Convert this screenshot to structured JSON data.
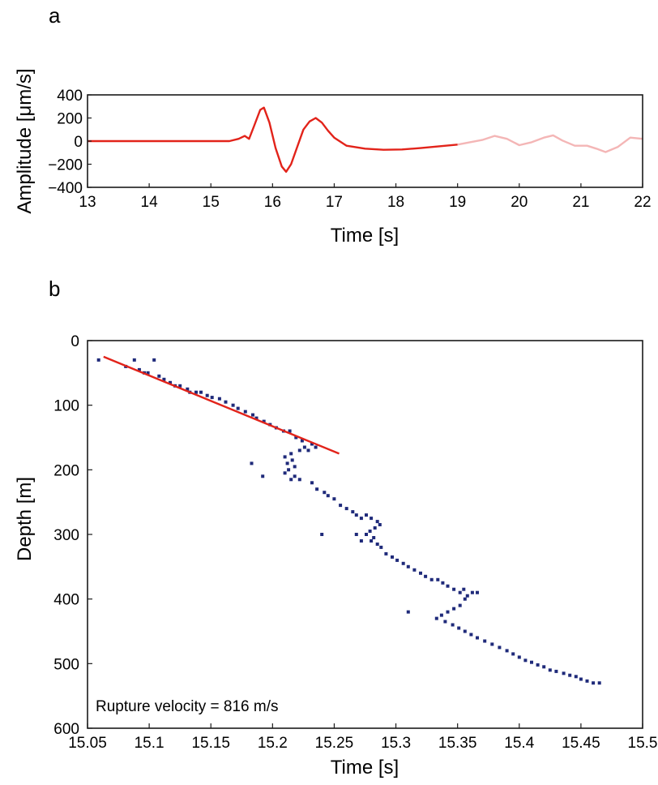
{
  "chart_data": [
    {
      "panel": "a",
      "type": "line",
      "xlabel": "Time [s]",
      "ylabel": "Amplitude [μm/s]",
      "xlim": [
        13,
        22
      ],
      "ylim": [
        -400,
        400
      ],
      "xticks": [
        "13",
        "14",
        "15",
        "16",
        "17",
        "18",
        "19",
        "20",
        "21",
        "22"
      ],
      "yticks": [
        "400",
        "200",
        "0",
        "−200",
        "−400"
      ],
      "series": [
        {
          "color": "#e2231a",
          "x": [
            13,
            15.3,
            15.45,
            15.55,
            15.62,
            15.7,
            15.8,
            15.86,
            15.95,
            16.05,
            16.15,
            16.22,
            16.3,
            16.4,
            16.5,
            16.6,
            16.7,
            16.8,
            16.9,
            17.0,
            17.2,
            17.5,
            17.8,
            18.1,
            18.4,
            18.7,
            19.0
          ],
          "y": [
            0,
            0,
            20,
            45,
            20,
            130,
            270,
            290,
            160,
            -60,
            -220,
            -265,
            -200,
            -50,
            100,
            170,
            200,
            160,
            90,
            30,
            -40,
            -65,
            -75,
            -72,
            -60,
            -45,
            -30
          ]
        },
        {
          "color": "#f4b6b6",
          "x": [
            19.0,
            19.2,
            19.4,
            19.6,
            19.8,
            20.0,
            20.2,
            20.4,
            20.55,
            20.7,
            20.9,
            21.1,
            21.25,
            21.4,
            21.6,
            21.8,
            22.0
          ],
          "y": [
            -30,
            -10,
            10,
            45,
            20,
            -35,
            -10,
            30,
            50,
            5,
            -40,
            -40,
            -65,
            -95,
            -50,
            30,
            20
          ]
        }
      ]
    },
    {
      "panel": "b",
      "type": "scatter",
      "xlabel": "Time [s]",
      "ylabel": "Depth [m]",
      "xlim": [
        15.05,
        15.5
      ],
      "ylim": [
        600,
        0
      ],
      "xticks": [
        "15.05",
        "15.1",
        "15.15",
        "15.2",
        "15.25",
        "15.3",
        "15.35",
        "15.4",
        "15.45",
        "15.5"
      ],
      "yticks": [
        "0",
        "100",
        "200",
        "300",
        "400",
        "500",
        "600"
      ],
      "annotation": "Rupture velocity = 816 m/s",
      "points_color": "#1f2a7a",
      "points": [
        [
          15.059,
          30
        ],
        [
          15.081,
          40
        ],
        [
          15.088,
          30
        ],
        [
          15.092,
          45
        ],
        [
          15.096,
          50
        ],
        [
          15.099,
          50
        ],
        [
          15.104,
          30
        ],
        [
          15.108,
          55
        ],
        [
          15.112,
          60
        ],
        [
          15.117,
          65
        ],
        [
          15.121,
          70
        ],
        [
          15.125,
          70
        ],
        [
          15.131,
          75
        ],
        [
          15.133,
          80
        ],
        [
          15.138,
          80
        ],
        [
          15.142,
          80
        ],
        [
          15.147,
          85
        ],
        [
          15.151,
          88
        ],
        [
          15.157,
          90
        ],
        [
          15.162,
          95
        ],
        [
          15.168,
          100
        ],
        [
          15.172,
          105
        ],
        [
          15.178,
          110
        ],
        [
          15.184,
          115
        ],
        [
          15.187,
          120
        ],
        [
          15.193,
          125
        ],
        [
          15.198,
          130
        ],
        [
          15.203,
          135
        ],
        [
          15.209,
          140
        ],
        [
          15.214,
          140
        ],
        [
          15.219,
          150
        ],
        [
          15.224,
          155
        ],
        [
          15.226,
          165
        ],
        [
          15.229,
          170
        ],
        [
          15.232,
          160
        ],
        [
          15.235,
          165
        ],
        [
          15.222,
          170
        ],
        [
          15.215,
          175
        ],
        [
          15.21,
          180
        ],
        [
          15.216,
          185
        ],
        [
          15.212,
          190
        ],
        [
          15.218,
          195
        ],
        [
          15.213,
          200
        ],
        [
          15.21,
          205
        ],
        [
          15.218,
          210
        ],
        [
          15.222,
          215
        ],
        [
          15.215,
          215
        ],
        [
          15.183,
          190
        ],
        [
          15.192,
          210
        ],
        [
          15.232,
          220
        ],
        [
          15.236,
          230
        ],
        [
          15.242,
          235
        ],
        [
          15.245,
          240
        ],
        [
          15.25,
          245
        ],
        [
          15.255,
          255
        ],
        [
          15.26,
          260
        ],
        [
          15.265,
          265
        ],
        [
          15.268,
          270
        ],
        [
          15.272,
          275
        ],
        [
          15.276,
          270
        ],
        [
          15.28,
          275
        ],
        [
          15.285,
          280
        ],
        [
          15.287,
          285
        ],
        [
          15.283,
          290
        ],
        [
          15.279,
          295
        ],
        [
          15.276,
          300
        ],
        [
          15.282,
          305
        ],
        [
          15.268,
          300
        ],
        [
          15.272,
          310
        ],
        [
          15.28,
          310
        ],
        [
          15.285,
          315
        ],
        [
          15.288,
          320
        ],
        [
          15.24,
          300
        ],
        [
          15.292,
          330
        ],
        [
          15.297,
          335
        ],
        [
          15.301,
          340
        ],
        [
          15.306,
          345
        ],
        [
          15.31,
          350
        ],
        [
          15.315,
          355
        ],
        [
          15.32,
          360
        ],
        [
          15.324,
          365
        ],
        [
          15.329,
          370
        ],
        [
          15.334,
          370
        ],
        [
          15.338,
          375
        ],
        [
          15.342,
          380
        ],
        [
          15.347,
          385
        ],
        [
          15.352,
          390
        ],
        [
          15.355,
          385
        ],
        [
          15.358,
          395
        ],
        [
          15.362,
          390
        ],
        [
          15.366,
          390
        ],
        [
          15.356,
          400
        ],
        [
          15.352,
          410
        ],
        [
          15.347,
          415
        ],
        [
          15.342,
          420
        ],
        [
          15.337,
          425
        ],
        [
          15.333,
          430
        ],
        [
          15.34,
          435
        ],
        [
          15.346,
          440
        ],
        [
          15.351,
          445
        ],
        [
          15.356,
          450
        ],
        [
          15.361,
          455
        ],
        [
          15.366,
          460
        ],
        [
          15.31,
          420
        ],
        [
          15.372,
          465
        ],
        [
          15.378,
          470
        ],
        [
          15.384,
          475
        ],
        [
          15.39,
          480
        ],
        [
          15.395,
          485
        ],
        [
          15.4,
          490
        ],
        [
          15.405,
          495
        ],
        [
          15.41,
          498
        ],
        [
          15.415,
          502
        ],
        [
          15.42,
          505
        ],
        [
          15.425,
          510
        ],
        [
          15.43,
          512
        ],
        [
          15.436,
          515
        ],
        [
          15.441,
          518
        ],
        [
          15.446,
          520
        ],
        [
          15.45,
          524
        ],
        [
          15.455,
          527
        ],
        [
          15.46,
          530
        ],
        [
          15.465,
          530
        ]
      ],
      "fit_line": {
        "color": "#e2231a",
        "x": [
          15.063,
          15.254
        ],
        "y": [
          25,
          175
        ]
      }
    }
  ]
}
